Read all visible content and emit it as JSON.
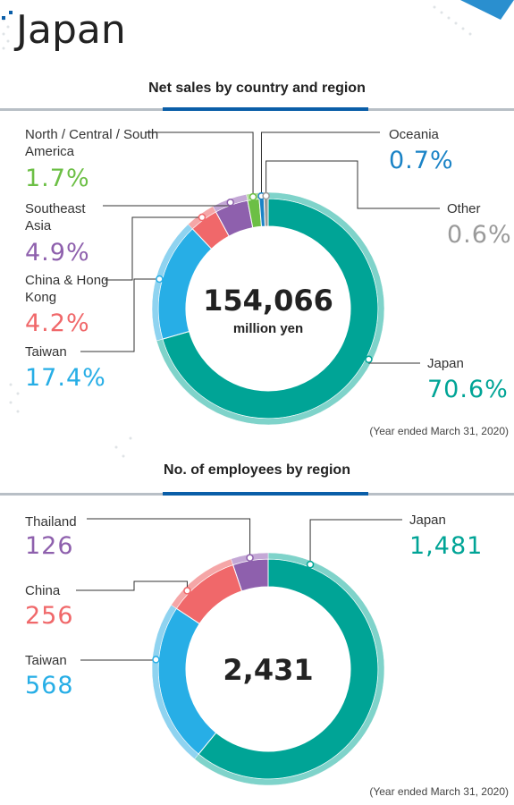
{
  "title": "Japan",
  "chart_data": [
    {
      "type": "pie",
      "title": "Net sales by country and region",
      "categories": [
        "Japan",
        "Taiwan",
        "China & Hong Kong",
        "Southeast Asia",
        "North / Central / South America",
        "Oceania",
        "Other"
      ],
      "values": [
        70.6,
        17.4,
        4.2,
        4.9,
        1.7,
        0.7,
        0.6
      ],
      "value_labels": [
        "70.6%",
        "17.4%",
        "4.2%",
        "4.9%",
        "1.7%",
        "0.7%",
        "0.6%"
      ],
      "colors": [
        "#00a496",
        "#27aee6",
        "#f0686a",
        "#8e60ad",
        "#6cbf45",
        "#1a83c6",
        "#9a9a9a"
      ],
      "rim_colors": [
        "#7fd3ca",
        "#8fd3f0",
        "#f5a6a7",
        "#c4a8d6",
        "#b3de9d",
        "#8cc0e2",
        "#cccccc"
      ],
      "center_value": "154,066",
      "center_unit": "million yen",
      "note": "(Year ended March 31, 2020)"
    },
    {
      "type": "pie",
      "title": "No. of employees by region",
      "categories": [
        "Japan",
        "Taiwan",
        "China",
        "Thailand"
      ],
      "values": [
        1481,
        568,
        256,
        126
      ],
      "value_labels": [
        "1,481",
        "568",
        "256",
        "126"
      ],
      "colors": [
        "#00a496",
        "#27aee6",
        "#f0686a",
        "#8e60ad"
      ],
      "rim_colors": [
        "#7fd3ca",
        "#8fd3f0",
        "#f5a6a7",
        "#c4a8d6"
      ],
      "center_value": "2,431",
      "note": "(Year ended March 31, 2020)"
    }
  ]
}
